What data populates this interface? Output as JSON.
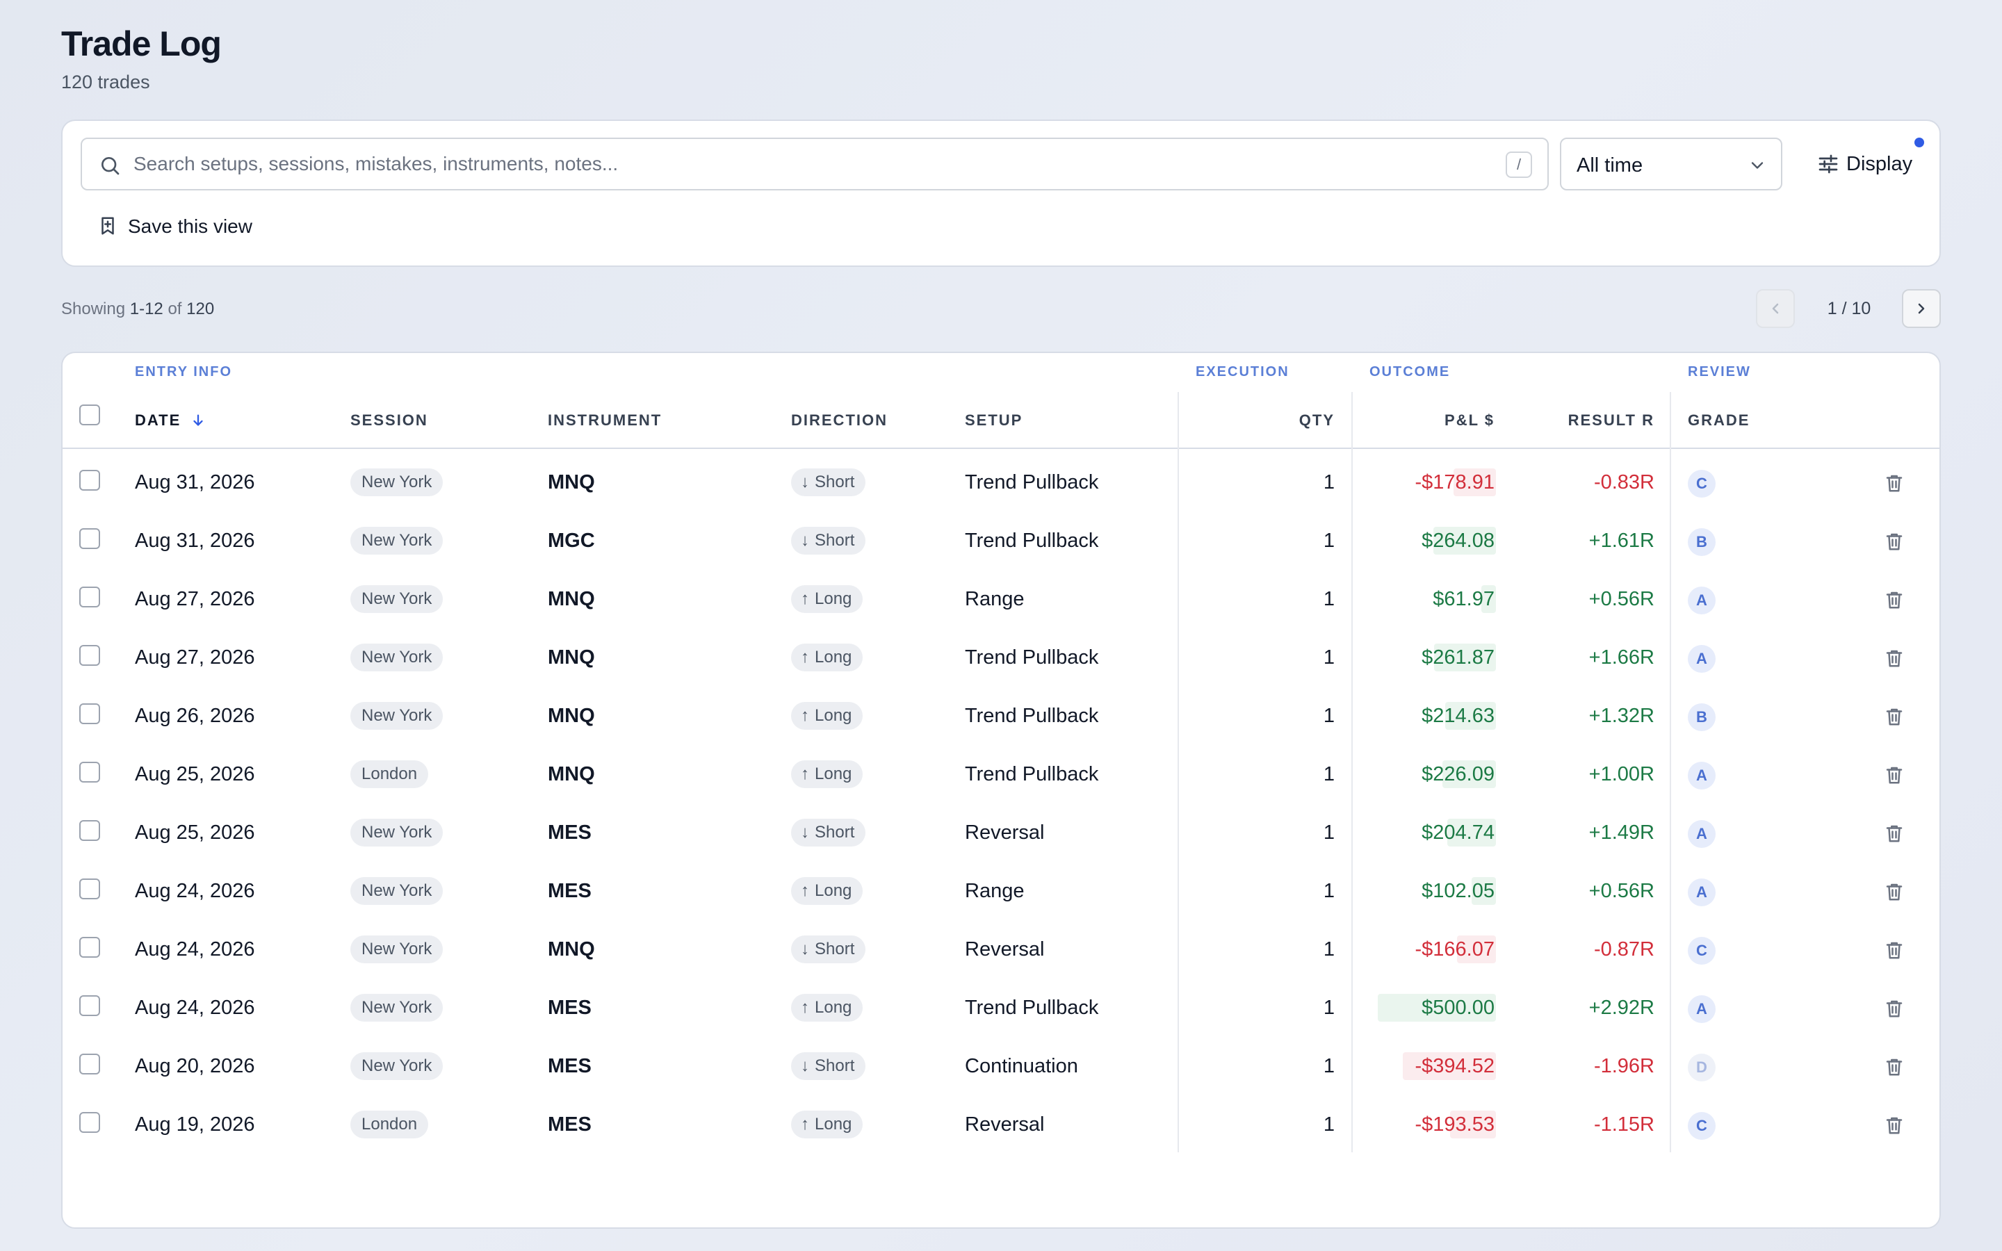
{
  "header": {
    "title": "Trade Log",
    "subtitle": "120 trades"
  },
  "toolbar": {
    "search_placeholder": "Search setups, sessions, mistakes, instruments, notes...",
    "search_value": "",
    "shortcut_key": "/",
    "range_value": "All time",
    "display_label": "Display",
    "save_view_label": "Save this view"
  },
  "status": {
    "showing_prefix": "Showing ",
    "showing_range": "1-12",
    "showing_of": " of ",
    "showing_total": "120",
    "page_label": "1 / 10"
  },
  "table": {
    "groups": {
      "entry": "ENTRY INFO",
      "execution": "EXECUTION",
      "outcome": "OUTCOME",
      "review": "REVIEW"
    },
    "columns": {
      "date": "DATE",
      "session": "SESSION",
      "instrument": "INSTRUMENT",
      "direction": "DIRECTION",
      "setup": "SETUP",
      "qty": "QTY",
      "pnl": "P&L $",
      "result": "RESULT R",
      "grade": "GRADE"
    },
    "rows": [
      {
        "date": "Aug 31, 2026",
        "session": "New York",
        "instrument": "MNQ",
        "direction": "Short",
        "setup": "Trend Pullback",
        "qty": "1",
        "pnl": "-$178.91",
        "result": "-0.83R",
        "grade": "C"
      },
      {
        "date": "Aug 31, 2026",
        "session": "New York",
        "instrument": "MGC",
        "direction": "Short",
        "setup": "Trend Pullback",
        "qty": "1",
        "pnl": "$264.08",
        "result": "+1.61R",
        "grade": "B"
      },
      {
        "date": "Aug 27, 2026",
        "session": "New York",
        "instrument": "MNQ",
        "direction": "Long",
        "setup": "Range",
        "qty": "1",
        "pnl": "$61.97",
        "result": "+0.56R",
        "grade": "A"
      },
      {
        "date": "Aug 27, 2026",
        "session": "New York",
        "instrument": "MNQ",
        "direction": "Long",
        "setup": "Trend Pullback",
        "qty": "1",
        "pnl": "$261.87",
        "result": "+1.66R",
        "grade": "A"
      },
      {
        "date": "Aug 26, 2026",
        "session": "New York",
        "instrument": "MNQ",
        "direction": "Long",
        "setup": "Trend Pullback",
        "qty": "1",
        "pnl": "$214.63",
        "result": "+1.32R",
        "grade": "B"
      },
      {
        "date": "Aug 25, 2026",
        "session": "London",
        "instrument": "MNQ",
        "direction": "Long",
        "setup": "Trend Pullback",
        "qty": "1",
        "pnl": "$226.09",
        "result": "+1.00R",
        "grade": "A"
      },
      {
        "date": "Aug 25, 2026",
        "session": "New York",
        "instrument": "MES",
        "direction": "Short",
        "setup": "Reversal",
        "qty": "1",
        "pnl": "$204.74",
        "result": "+1.49R",
        "grade": "A"
      },
      {
        "date": "Aug 24, 2026",
        "session": "New York",
        "instrument": "MES",
        "direction": "Long",
        "setup": "Range",
        "qty": "1",
        "pnl": "$102.05",
        "result": "+0.56R",
        "grade": "A"
      },
      {
        "date": "Aug 24, 2026",
        "session": "New York",
        "instrument": "MNQ",
        "direction": "Short",
        "setup": "Reversal",
        "qty": "1",
        "pnl": "-$166.07",
        "result": "-0.87R",
        "grade": "C"
      },
      {
        "date": "Aug 24, 2026",
        "session": "New York",
        "instrument": "MES",
        "direction": "Long",
        "setup": "Trend Pullback",
        "qty": "1",
        "pnl": "$500.00",
        "result": "+2.92R",
        "grade": "A"
      },
      {
        "date": "Aug 20, 2026",
        "session": "New York",
        "instrument": "MES",
        "direction": "Short",
        "setup": "Continuation",
        "qty": "1",
        "pnl": "-$394.52",
        "result": "-1.96R",
        "grade": "D"
      },
      {
        "date": "Aug 19, 2026",
        "session": "London",
        "instrument": "MES",
        "direction": "Long",
        "setup": "Reversal",
        "qty": "1",
        "pnl": "-$193.53",
        "result": "-1.15R",
        "grade": "C"
      }
    ]
  },
  "colors": {
    "positive": "#1c7a45",
    "negative": "#d22e3a",
    "accent": "#2f5be4",
    "group_label": "#5b7fd6"
  },
  "icons": {
    "search": "search-icon",
    "range": "chevron-down-icon",
    "display": "sliders-icon",
    "save": "bookmark-plus-icon",
    "sort": "arrow-down-icon",
    "delete": "trash-icon"
  }
}
